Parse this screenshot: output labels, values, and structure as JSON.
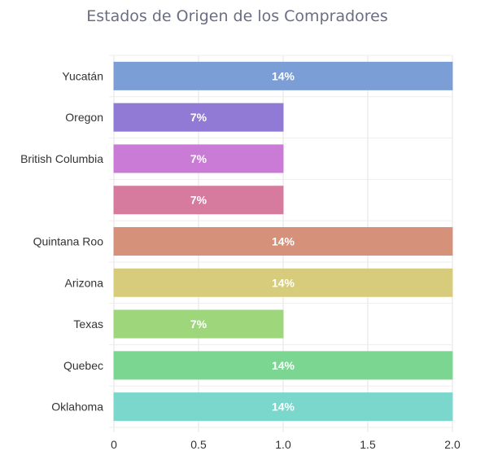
{
  "chart_data": {
    "type": "bar",
    "orientation": "horizontal",
    "title": "Estados de Origen de los Compradores",
    "categories": [
      "Yucatán",
      "Oregon",
      "British Columbia",
      "",
      "Quintana Roo",
      "Arizona",
      "Texas",
      "Quebec",
      "Oklahoma"
    ],
    "values": [
      2,
      1,
      1,
      1,
      2,
      2,
      1,
      2,
      2
    ],
    "data_labels": [
      "14%",
      "7%",
      "7%",
      "7%",
      "14%",
      "14%",
      "7%",
      "14%",
      "14%"
    ],
    "colors": [
      "#7b9ed6",
      "#9179d6",
      "#c97bd6",
      "#d67b9e",
      "#d6917b",
      "#d6cc7b",
      "#9ed67b",
      "#7bd691",
      "#7bd6cc"
    ],
    "xlim": [
      0,
      2
    ],
    "x_ticks": [
      "0",
      "0.5",
      "1.0",
      "1.5",
      "2.0"
    ],
    "grid": true,
    "xlabel": "",
    "ylabel": ""
  }
}
